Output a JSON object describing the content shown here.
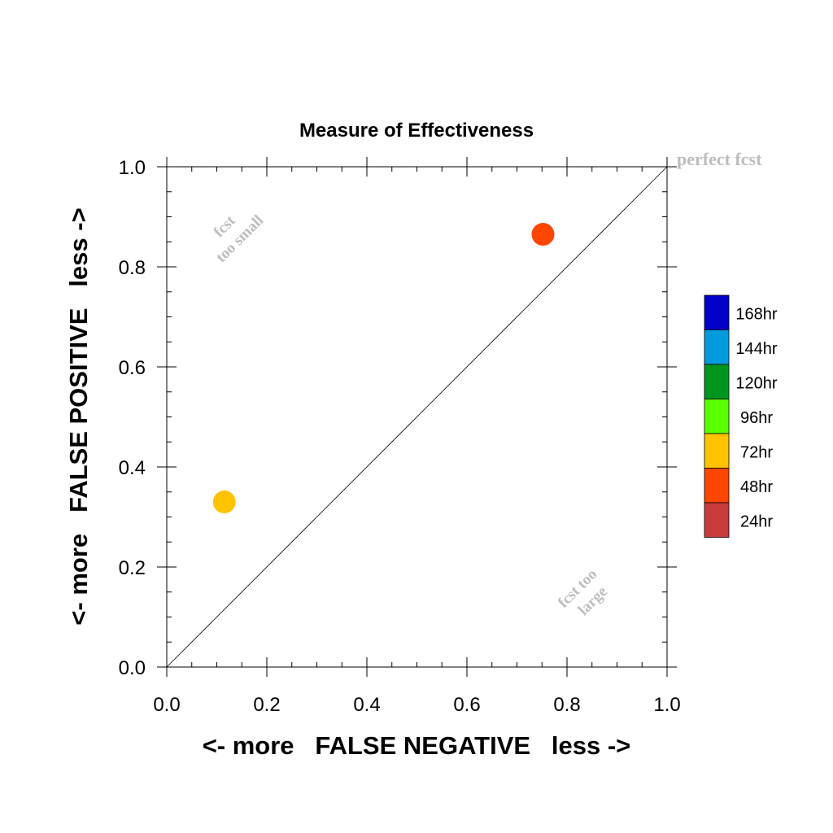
{
  "chart_data": {
    "type": "scatter",
    "title": "Measure of Effectiveness",
    "xlabel": "<- more   FALSE NEGATIVE   less ->",
    "ylabel": "<- more   FALSE POSITIVE   less ->",
    "xlim": [
      0,
      1
    ],
    "ylim": [
      0,
      1
    ],
    "xticks": [
      "0.0",
      "0.2",
      "0.4",
      "0.6",
      "0.8",
      "1.0"
    ],
    "yticks": [
      "0.0",
      "0.2",
      "0.4",
      "0.6",
      "0.8",
      "1.0"
    ],
    "grid": false,
    "reference_line": {
      "x": [
        0,
        1
      ],
      "y": [
        0,
        1
      ],
      "label": "perfect fcst"
    },
    "region_labels": {
      "upper_left": [
        "fcst",
        "too small"
      ],
      "lower_right": [
        "fcst too",
        "large"
      ]
    },
    "legend": {
      "placement": "right",
      "entries": [
        {
          "label": "168hr",
          "color": "#0000c8"
        },
        {
          "label": "144hr",
          "color": "#009bdc"
        },
        {
          "label": "120hr",
          "color": "#00961e"
        },
        {
          "label": "96hr",
          "color": "#5aff00"
        },
        {
          "label": "72hr",
          "color": "#ffc300"
        },
        {
          "label": "48hr",
          "color": "#ff4600"
        },
        {
          "label": "24hr",
          "color": "#c83c3c"
        }
      ]
    },
    "points": [
      {
        "series": "72hr",
        "x": 0.115,
        "y": 0.33,
        "color": "#ffc300"
      },
      {
        "series": "48hr",
        "x": 0.752,
        "y": 0.865,
        "color": "#ff4600"
      }
    ]
  }
}
